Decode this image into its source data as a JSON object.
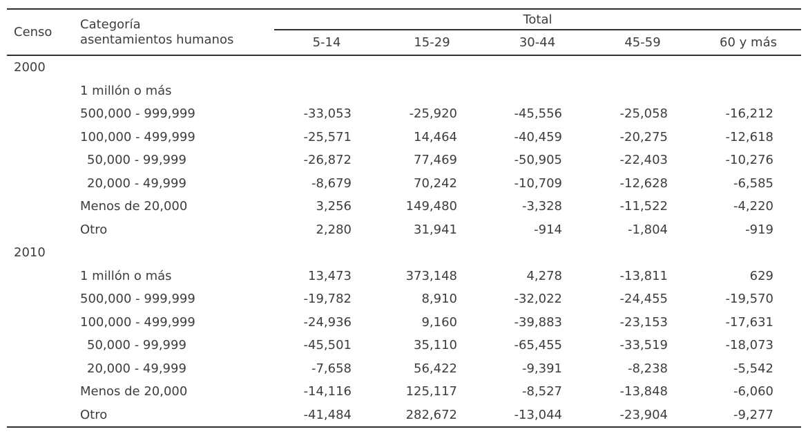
{
  "colors": {
    "text": "#3d3d3d",
    "line": "#2d2d2d",
    "background": "#ffffff"
  },
  "table": {
    "headers": {
      "censo": "Censo",
      "categoria_line1": "Categoría",
      "categoria_line2": "asentamientos humanos",
      "total": "Total",
      "age_groups": [
        "5-14",
        "15-29",
        "30-44",
        "45-59",
        "60 y más"
      ]
    },
    "sections": [
      {
        "censo": "2000",
        "rows": [
          {
            "categoria": "1 millón o más",
            "indent": false,
            "values": [
              "",
              "",
              "",
              "",
              ""
            ]
          },
          {
            "categoria": "500,000 - 999,999",
            "indent": false,
            "values": [
              "-33,053",
              "-25,920",
              "-45,556",
              "-25,058",
              "-16,212"
            ]
          },
          {
            "categoria": "100,000 - 499,999",
            "indent": false,
            "values": [
              "-25,571",
              "14,464",
              "-40,459",
              "-20,275",
              "-12,618"
            ]
          },
          {
            "categoria": "50,000 - 99,999",
            "indent": true,
            "values": [
              "-26,872",
              "77,469",
              "-50,905",
              "-22,403",
              "-10,276"
            ]
          },
          {
            "categoria": "20,000 - 49,999",
            "indent": true,
            "values": [
              "-8,679",
              "70,242",
              "-10,709",
              "-12,628",
              "-6,585"
            ]
          },
          {
            "categoria": "Menos de 20,000",
            "indent": false,
            "values": [
              "3,256",
              "149,480",
              "-3,328",
              "-11,522",
              "-4,220"
            ]
          },
          {
            "categoria": "Otro",
            "indent": false,
            "values": [
              "2,280",
              "31,941",
              "-914",
              "-1,804",
              "-919"
            ]
          }
        ]
      },
      {
        "censo": "2010",
        "rows": [
          {
            "categoria": "1 millón o más",
            "indent": false,
            "values": [
              "13,473",
              "373,148",
              "4,278",
              "-13,811",
              "629"
            ]
          },
          {
            "categoria": "500,000 - 999,999",
            "indent": false,
            "values": [
              "-19,782",
              "8,910",
              "-32,022",
              "-24,455",
              "-19,570"
            ]
          },
          {
            "categoria": "100,000 - 499,999",
            "indent": false,
            "values": [
              "-24,936",
              "9,160",
              "-39,883",
              "-23,153",
              "-17,631"
            ]
          },
          {
            "categoria": "50,000 - 99,999",
            "indent": true,
            "values": [
              "-45,501",
              "35,110",
              "-65,455",
              "-33,519",
              "-18,073"
            ]
          },
          {
            "categoria": "20,000 - 49,999",
            "indent": true,
            "values": [
              "-7,658",
              "56,422",
              "-9,391",
              "-8,238",
              "-5,542"
            ]
          },
          {
            "categoria": "Menos de 20,000",
            "indent": false,
            "values": [
              "-14,116",
              "125,117",
              "-8,527",
              "-13,848",
              "-6,060"
            ]
          },
          {
            "categoria": "Otro",
            "indent": false,
            "values": [
              "-41,484",
              "282,672",
              "-13,044",
              "-23,904",
              "-9,277"
            ]
          }
        ]
      }
    ]
  }
}
